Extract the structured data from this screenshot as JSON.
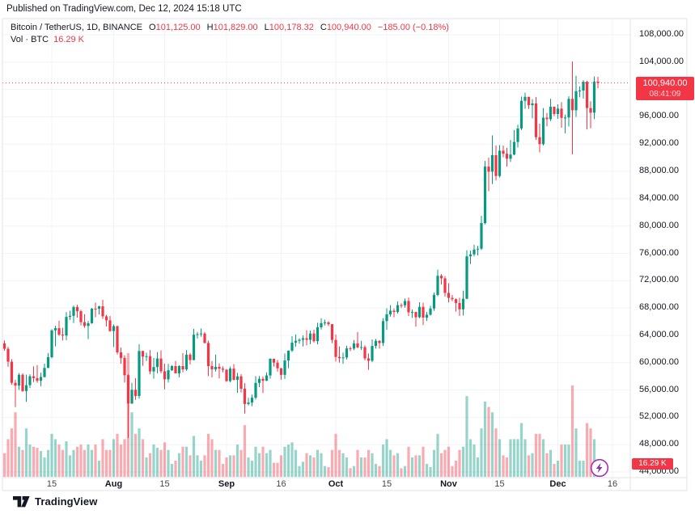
{
  "header": {
    "published": "Published on TradingView.com, Dec 12, 2024 15:18 UTC",
    "title": "Bitcoin / TetherUS, 1D, BINANCE",
    "ohlc": [
      {
        "k": "O",
        "v": "101,125.00"
      },
      {
        "k": "H",
        "v": "101,829.00"
      },
      {
        "k": "L",
        "v": "100,178.32"
      },
      {
        "k": "C",
        "v": "100,940.00"
      }
    ],
    "change": "−185.00 (−0.18%)",
    "vol_label": "Vol · BTC",
    "vol_value": "16.29 K"
  },
  "price_label": {
    "price": "100,940.00",
    "countdown": "08:41:09"
  },
  "volume_label": {
    "text": "16.29 K"
  },
  "watermark": {
    "text": "TradingView"
  },
  "colors": {
    "up": "#089981",
    "down": "#F23645",
    "volume_up": "rgba(8,153,129,0.42)",
    "volume_down": "rgba(242,54,69,0.42)",
    "grid": "#f0f3fa",
    "frame": "#e0e3eb",
    "text": "#131722",
    "accent_red": "#F23645",
    "flash_purple": "#a032b9"
  },
  "chart_data": {
    "type": "candlestick+volume",
    "title": "Bitcoin / TetherUS, 1D, BINANCE",
    "legend_position": "top-left",
    "grid": true,
    "last_price": 100940,
    "countdown": "08:41:09",
    "current_volume_k": 16.29,
    "y_axis": {
      "min": 44000,
      "max": 108000,
      "tick_step": 4000
    },
    "y_labels": [
      {
        "price": 108000,
        "text": "108,000.00"
      },
      {
        "price": 104000,
        "text": "104,000.00"
      },
      {
        "price": 96000,
        "text": "96,000.00"
      },
      {
        "price": 92000,
        "text": "92,000.00"
      },
      {
        "price": 88000,
        "text": "88,000.00"
      },
      {
        "price": 84000,
        "text": "84,000.00"
      },
      {
        "price": 80000,
        "text": "80,000.00"
      },
      {
        "price": 76000,
        "text": "76,000.00"
      },
      {
        "price": 72000,
        "text": "72,000.00"
      },
      {
        "price": 68000,
        "text": "68,000.00"
      },
      {
        "price": 64000,
        "text": "64,000.00"
      },
      {
        "price": 60000,
        "text": "60,000.00"
      },
      {
        "price": 56000,
        "text": "56,000.00"
      },
      {
        "price": 52000,
        "text": "52,000.00"
      },
      {
        "price": 48000,
        "text": "48,000.00"
      },
      {
        "price": 44000,
        "text": "44,000.00"
      }
    ],
    "x_ticks": [
      {
        "i": 13,
        "label": "15",
        "bold": false
      },
      {
        "i": 30,
        "label": "Aug",
        "bold": true
      },
      {
        "i": 44,
        "label": "15",
        "bold": false
      },
      {
        "i": 61,
        "label": "Sep",
        "bold": true
      },
      {
        "i": 76,
        "label": "16",
        "bold": false
      },
      {
        "i": 91,
        "label": "Oct",
        "bold": true
      },
      {
        "i": 105,
        "label": "15",
        "bold": false
      },
      {
        "i": 122,
        "label": "Nov",
        "bold": true
      },
      {
        "i": 136,
        "label": "15",
        "bold": false
      },
      {
        "i": 152,
        "label": "Dec",
        "bold": true
      },
      {
        "i": 167,
        "label": "16",
        "bold": false
      }
    ],
    "volume_unit": "K BTC",
    "volume_scale_max": 115,
    "candles_format": [
      "open",
      "high",
      "low",
      "close",
      "volume_k"
    ],
    "candles": [
      [
        62830,
        63250,
        61750,
        62030,
        22
      ],
      [
        62030,
        62300,
        59400,
        60145,
        35
      ],
      [
        60145,
        60500,
        56770,
        57050,
        45
      ],
      [
        57050,
        57500,
        53500,
        56640,
        60
      ],
      [
        56640,
        58475,
        56020,
        58230,
        28
      ],
      [
        58230,
        58450,
        55725,
        55850,
        25
      ],
      [
        55850,
        58240,
        54260,
        56705,
        45
      ],
      [
        56705,
        58300,
        56290,
        58010,
        30
      ],
      [
        58010,
        59470,
        57150,
        57740,
        28
      ],
      [
        57740,
        59650,
        57050,
        57345,
        27
      ],
      [
        57345,
        58530,
        56550,
        57900,
        24
      ],
      [
        57900,
        59850,
        57830,
        59230,
        18
      ],
      [
        59230,
        61400,
        59200,
        60800,
        25
      ],
      [
        60800,
        64900,
        60630,
        64725,
        40
      ],
      [
        64725,
        65400,
        62400,
        65050,
        35
      ],
      [
        65050,
        66130,
        63900,
        64100,
        30
      ],
      [
        64100,
        65100,
        63250,
        63970,
        25
      ],
      [
        63970,
        67400,
        63300,
        66700,
        33
      ],
      [
        66700,
        67600,
        66250,
        66850,
        20
      ],
      [
        66850,
        68350,
        65800,
        68150,
        25
      ],
      [
        68150,
        68480,
        66600,
        67530,
        28
      ],
      [
        67530,
        67750,
        65450,
        65930,
        30
      ],
      [
        65930,
        67100,
        65100,
        65370,
        25
      ],
      [
        65370,
        66100,
        63450,
        65780,
        30
      ],
      [
        65780,
        68000,
        65700,
        67910,
        25
      ],
      [
        67910,
        68800,
        66650,
        67900,
        30
      ],
      [
        67900,
        68330,
        67060,
        68250,
        15
      ],
      [
        68250,
        69200,
        66400,
        66780,
        35
      ],
      [
        66780,
        67000,
        65300,
        66190,
        25
      ],
      [
        66190,
        66850,
        64530,
        64620,
        25
      ],
      [
        64620,
        65600,
        62300,
        65350,
        35
      ],
      [
        65350,
        65400,
        61200,
        61500,
        40
      ],
      [
        61500,
        62200,
        59850,
        60700,
        30
      ],
      [
        60700,
        61100,
        57100,
        58160,
        35
      ],
      [
        58160,
        58300,
        49000,
        54020,
        115
      ],
      [
        54020,
        57050,
        53950,
        56030,
        60
      ],
      [
        56030,
        57740,
        54560,
        55130,
        40
      ],
      [
        55130,
        62700,
        54730,
        61710,
        45
      ],
      [
        61710,
        61750,
        59540,
        60880,
        35
      ],
      [
        60880,
        61470,
        60250,
        60945,
        18
      ],
      [
        60945,
        61850,
        58300,
        58715,
        22
      ],
      [
        58715,
        60700,
        57650,
        59355,
        30
      ],
      [
        59355,
        61550,
        58450,
        60610,
        27
      ],
      [
        60610,
        61790,
        58440,
        58740,
        25
      ],
      [
        58740,
        59850,
        56100,
        57560,
        32
      ],
      [
        57560,
        59820,
        57120,
        58890,
        25
      ],
      [
        58890,
        59650,
        58790,
        59495,
        12
      ],
      [
        59495,
        60250,
        58450,
        58440,
        15
      ],
      [
        58440,
        59620,
        57850,
        59500,
        22
      ],
      [
        59500,
        61400,
        58600,
        59015,
        28
      ],
      [
        59015,
        61830,
        58800,
        61170,
        28
      ],
      [
        61170,
        61400,
        59750,
        60380,
        20
      ],
      [
        60380,
        64950,
        60350,
        64090,
        38
      ],
      [
        64090,
        64500,
        63530,
        64170,
        20
      ],
      [
        64170,
        65000,
        63800,
        64270,
        15
      ],
      [
        64270,
        64480,
        62830,
        62880,
        20
      ],
      [
        62880,
        63210,
        58030,
        59505,
        40
      ],
      [
        59505,
        60230,
        57860,
        59025,
        35
      ],
      [
        59025,
        61180,
        58700,
        59390,
        25
      ],
      [
        59390,
        59900,
        57700,
        59120,
        25
      ],
      [
        59120,
        59450,
        58580,
        58970,
        12
      ],
      [
        58970,
        59070,
        57200,
        57300,
        18
      ],
      [
        57300,
        59425,
        57125,
        59130,
        20
      ],
      [
        59130,
        59800,
        57400,
        57490,
        20
      ],
      [
        57490,
        58520,
        55600,
        58000,
        30
      ],
      [
        58000,
        58330,
        55640,
        56180,
        25
      ],
      [
        56180,
        57000,
        52550,
        53950,
        48
      ],
      [
        53950,
        54850,
        53740,
        54160,
        18
      ],
      [
        54160,
        55320,
        53630,
        54870,
        15
      ],
      [
        54870,
        58040,
        54600,
        57040,
        28
      ],
      [
        57040,
        58050,
        56420,
        57635,
        22
      ],
      [
        57635,
        57980,
        55550,
        57340,
        28
      ],
      [
        57340,
        58590,
        57330,
        58130,
        22
      ],
      [
        58130,
        60650,
        57650,
        60570,
        25
      ],
      [
        60570,
        60610,
        59430,
        60005,
        13
      ],
      [
        60005,
        60400,
        58700,
        59185,
        13
      ],
      [
        59185,
        59210,
        57500,
        58215,
        20
      ],
      [
        58215,
        61330,
        57620,
        60310,
        28
      ],
      [
        60310,
        61790,
        59180,
        61760,
        30
      ],
      [
        61760,
        63880,
        61560,
        62940,
        32
      ],
      [
        62940,
        64130,
        62350,
        63200,
        25
      ],
      [
        63200,
        63560,
        62760,
        63350,
        10
      ],
      [
        63350,
        64000,
        62360,
        63575,
        14
      ],
      [
        63575,
        64750,
        62540,
        63340,
        22
      ],
      [
        63340,
        64700,
        62700,
        64265,
        20
      ],
      [
        64265,
        64820,
        62950,
        63150,
        18
      ],
      [
        63150,
        65840,
        62670,
        65180,
        25
      ],
      [
        65180,
        66500,
        64850,
        65790,
        22
      ],
      [
        65790,
        66280,
        65440,
        65890,
        10
      ],
      [
        65890,
        66080,
        65350,
        65635,
        9
      ],
      [
        65635,
        65635,
        62860,
        63330,
        25
      ],
      [
        63330,
        64130,
        60160,
        60840,
        40
      ],
      [
        60840,
        62385,
        60000,
        60655,
        25
      ],
      [
        60655,
        61480,
        59830,
        60755,
        22
      ],
      [
        60755,
        62485,
        60460,
        62090,
        18
      ],
      [
        62090,
        62370,
        61690,
        62060,
        8
      ],
      [
        62060,
        63330,
        61840,
        62820,
        10
      ],
      [
        62820,
        64480,
        62120,
        62240,
        25
      ],
      [
        62240,
        63200,
        61860,
        62280,
        18
      ],
      [
        62280,
        62550,
        60320,
        60625,
        18
      ],
      [
        60625,
        61340,
        58950,
        60275,
        25
      ],
      [
        60275,
        63400,
        60080,
        62445,
        22
      ],
      [
        62445,
        63480,
        62050,
        63200,
        12
      ],
      [
        63200,
        63290,
        62050,
        62870,
        10
      ],
      [
        62870,
        66500,
        62450,
        66080,
        30
      ],
      [
        66080,
        67950,
        64800,
        67070,
        35
      ],
      [
        67070,
        68420,
        66750,
        67610,
        25
      ],
      [
        67610,
        67940,
        66660,
        67420,
        20
      ],
      [
        67420,
        68980,
        67170,
        68420,
        22
      ],
      [
        68420,
        68700,
        68010,
        68395,
        8
      ],
      [
        68395,
        69400,
        68050,
        69030,
        10
      ],
      [
        69030,
        69520,
        66830,
        67370,
        28
      ],
      [
        67370,
        67800,
        66550,
        67415,
        18
      ],
      [
        67415,
        67470,
        65260,
        66650,
        20
      ],
      [
        66650,
        68850,
        66500,
        68170,
        20
      ],
      [
        68170,
        68780,
        65500,
        66600,
        28
      ],
      [
        66600,
        67440,
        66100,
        67020,
        12
      ],
      [
        67020,
        68330,
        66870,
        67930,
        9
      ],
      [
        67930,
        70280,
        67590,
        69910,
        25
      ],
      [
        69910,
        73620,
        69730,
        72720,
        40
      ],
      [
        72720,
        72960,
        71430,
        72340,
        22
      ],
      [
        72340,
        72670,
        69685,
        70215,
        25
      ],
      [
        70215,
        71630,
        68820,
        69480,
        28
      ],
      [
        69480,
        69910,
        69000,
        69290,
        10
      ],
      [
        69290,
        69390,
        67480,
        68740,
        15
      ],
      [
        68740,
        69500,
        66835,
        67810,
        25
      ],
      [
        67810,
        70550,
        66900,
        69360,
        28
      ],
      [
        69360,
        76460,
        69280,
        75570,
        75
      ],
      [
        75570,
        76400,
        74450,
        75855,
        35
      ],
      [
        75855,
        77250,
        75555,
        76560,
        30
      ],
      [
        76560,
        77100,
        75700,
        76680,
        18
      ],
      [
        76680,
        81480,
        76490,
        80430,
        45
      ],
      [
        80430,
        89530,
        80240,
        88700,
        70
      ],
      [
        88700,
        90000,
        85100,
        87955,
        65
      ],
      [
        87955,
        93265,
        86140,
        90375,
        60
      ],
      [
        90375,
        91790,
        86670,
        87325,
        45
      ],
      [
        87325,
        91850,
        87100,
        91030,
        35
      ],
      [
        91030,
        91780,
        90060,
        90585,
        20
      ],
      [
        90585,
        91450,
        88720,
        89855,
        18
      ],
      [
        89855,
        92595,
        89380,
        90465,
        35
      ],
      [
        90465,
        94050,
        90350,
        92310,
        35
      ],
      [
        92310,
        94830,
        91500,
        94285,
        35
      ],
      [
        94285,
        98950,
        94040,
        98330,
        50
      ],
      [
        98330,
        99520,
        97170,
        98915,
        35
      ],
      [
        98915,
        98925,
        97140,
        97690,
        20
      ],
      [
        97690,
        98560,
        95750,
        97945,
        22
      ],
      [
        97945,
        98870,
        92600,
        93010,
        40
      ],
      [
        93010,
        94980,
        90790,
        91985,
        40
      ],
      [
        91985,
        97270,
        91780,
        95865,
        35
      ],
      [
        95865,
        96570,
        94590,
        95645,
        22
      ],
      [
        95645,
        98620,
        95370,
        97460,
        25
      ],
      [
        97460,
        97460,
        96080,
        96405,
        12
      ],
      [
        96405,
        97830,
        95700,
        97185,
        15
      ],
      [
        97185,
        98130,
        94395,
        95840,
        30
      ],
      [
        95840,
        96300,
        93580,
        95890,
        30
      ],
      [
        95890,
        99000,
        94580,
        98620,
        30
      ],
      [
        98620,
        104088,
        90500,
        96945,
        85
      ],
      [
        96945,
        102000,
        95980,
        99740,
        45
      ],
      [
        99740,
        100440,
        98850,
        99835,
        15
      ],
      [
        99835,
        101350,
        98660,
        101110,
        15
      ],
      [
        101110,
        101265,
        94150,
        97275,
        50
      ],
      [
        97275,
        98270,
        94300,
        96590,
        45
      ],
      [
        96590,
        101890,
        95655,
        101125,
        35
      ],
      [
        101125,
        101829,
        100178,
        100940,
        16.29
      ]
    ]
  }
}
